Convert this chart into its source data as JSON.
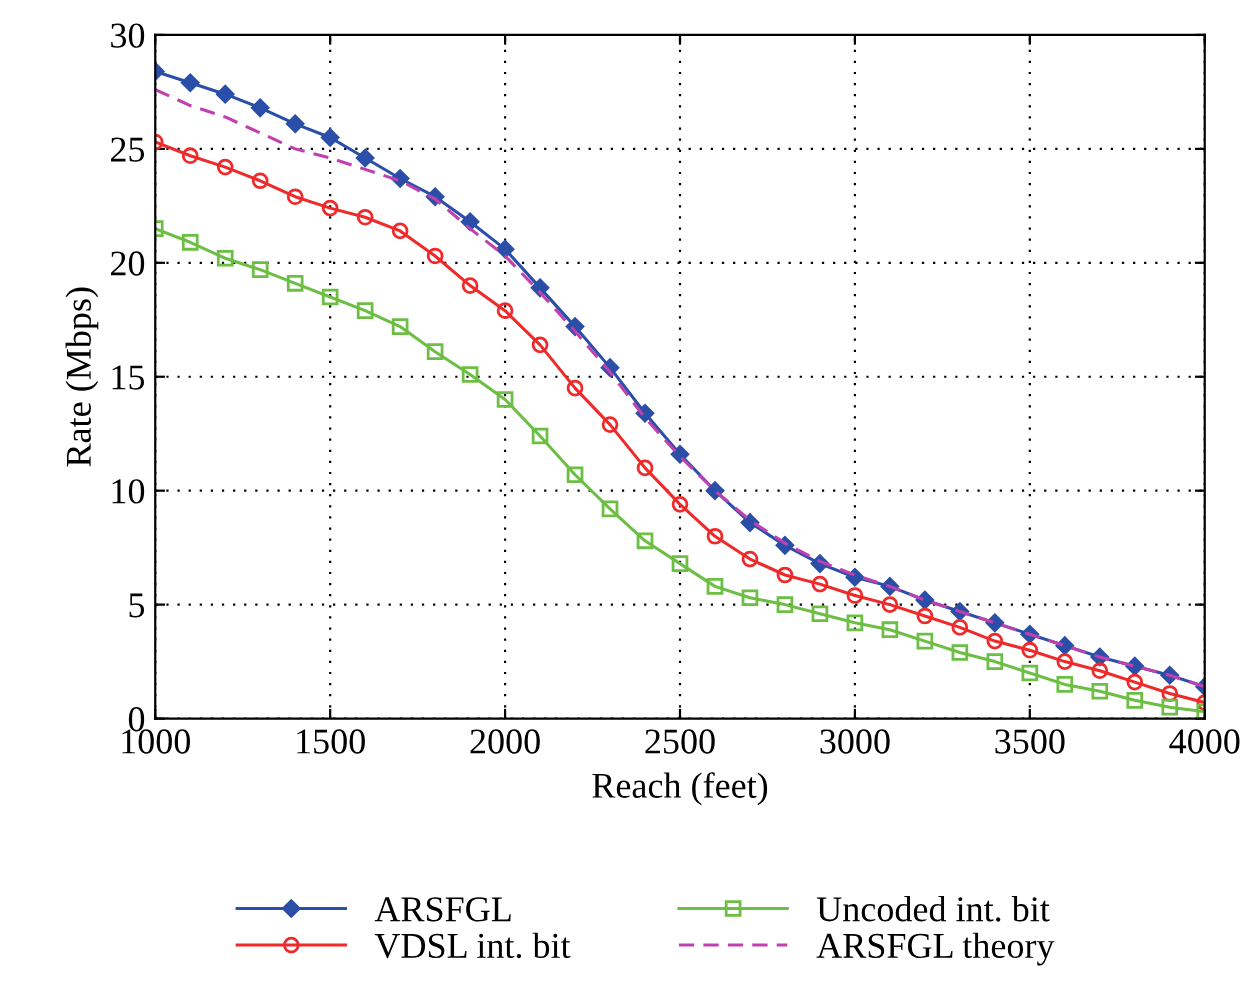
{
  "chart_data": {
    "type": "line",
    "xlabel": "Reach (feet)",
    "ylabel": "Rate (Mbps)",
    "x": [
      1000,
      1100,
      1200,
      1300,
      1400,
      1500,
      1600,
      1700,
      1800,
      1900,
      2000,
      2100,
      2200,
      2300,
      2400,
      2500,
      2600,
      2700,
      2800,
      2900,
      3000,
      3100,
      3200,
      3300,
      3400,
      3500,
      3600,
      3700,
      3800,
      3900,
      4000
    ],
    "xlim": [
      1000,
      4000
    ],
    "xticks": [
      1000,
      1500,
      2000,
      2500,
      3000,
      3500,
      4000
    ],
    "ylim": [
      0,
      30
    ],
    "yticks": [
      0,
      5,
      10,
      15,
      20,
      25,
      30
    ],
    "grid": true,
    "legend": "bottom",
    "series": [
      {
        "name": "ARSFGL",
        "color": "#2b4fa8",
        "marker": "diamond",
        "line_style": "solid",
        "values": [
          28.4,
          27.9,
          27.4,
          26.8,
          26.1,
          25.5,
          24.6,
          23.7,
          22.9,
          21.8,
          20.6,
          18.9,
          17.2,
          15.4,
          13.4,
          11.6,
          10.0,
          8.6,
          7.6,
          6.8,
          6.2,
          5.8,
          5.2,
          4.7,
          4.2,
          3.7,
          3.2,
          2.7,
          2.3,
          1.9,
          1.4
        ]
      },
      {
        "name": "VDSL int. bit",
        "color": "#ee2a2a",
        "marker": "circle",
        "line_style": "solid",
        "values": [
          25.3,
          24.7,
          24.2,
          23.6,
          22.9,
          22.4,
          22.0,
          21.4,
          20.3,
          19.0,
          17.9,
          16.4,
          14.5,
          12.9,
          11.0,
          9.4,
          8.0,
          7.0,
          6.3,
          5.9,
          5.4,
          5.0,
          4.5,
          4.0,
          3.4,
          3.0,
          2.5,
          2.1,
          1.6,
          1.1,
          0.7
        ]
      },
      {
        "name": "Uncoded int. bit",
        "color": "#6cbf44",
        "marker": "square",
        "line_style": "solid",
        "values": [
          21.5,
          20.9,
          20.2,
          19.7,
          19.1,
          18.5,
          17.9,
          17.2,
          16.1,
          15.1,
          14.0,
          12.4,
          10.7,
          9.2,
          7.8,
          6.8,
          5.8,
          5.3,
          5.0,
          4.6,
          4.2,
          3.9,
          3.4,
          2.9,
          2.5,
          2.0,
          1.5,
          1.2,
          0.8,
          0.5,
          0.3
        ]
      },
      {
        "name": "ARSFGL theory",
        "color": "#c040b0",
        "marker": "none",
        "line_style": "dashed",
        "values": [
          27.6,
          26.9,
          26.4,
          25.7,
          25.0,
          24.6,
          24.1,
          23.6,
          22.8,
          21.5,
          20.3,
          18.7,
          17.0,
          15.2,
          13.2,
          11.5,
          10.0,
          8.7,
          7.7,
          6.9,
          6.3,
          5.8,
          5.2,
          4.7,
          4.2,
          3.7,
          3.2,
          2.7,
          2.3,
          1.9,
          1.4
        ]
      }
    ]
  }
}
